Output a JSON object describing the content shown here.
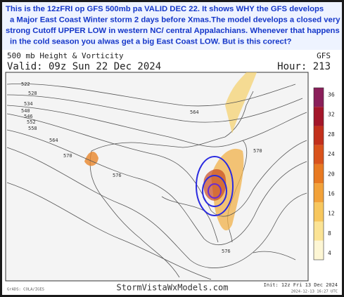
{
  "caption_lines": [
    "This is the 12zFRI op GFS 500mb pa VALID  DEC 22. It shows  WHY  the GFS develops",
    "a  Major East Coast Winter storm 2 days before Xmas.The model develops a closed very",
    "strong Cutoff UPPER LOW in western NC/ central Appalachians. Whenever that happens",
    "in the cold season you alwas get a  big East Coast LOW.   But is this corect?"
  ],
  "header": {
    "product": "500 mb Height & Vorticity",
    "model": "GFS",
    "valid": "Valid: 09z Sun 22 Dec 2024",
    "hour": "Hour: 213"
  },
  "colorbar": {
    "labels": [
      36,
      32,
      28,
      24,
      20,
      16,
      12,
      8,
      4
    ],
    "colors": [
      "#8a1f5a",
      "#a3162a",
      "#c2301c",
      "#d9531c",
      "#e87a22",
      "#f2a23a",
      "#f7c75e",
      "#fbe394",
      "#fdf6d4"
    ]
  },
  "contour_labels": [
    "522",
    "528",
    "534",
    "540",
    "546",
    "552",
    "558",
    "564",
    "570",
    "576",
    "564",
    "570",
    "576"
  ],
  "footer": {
    "site": "StormVistaWxModels.com",
    "init": "Init: 12z Fri 13 Dec 2024",
    "stamp": "2024-12-13 16:27 UTC",
    "grads": "GrADS: COLA/IGES"
  }
}
